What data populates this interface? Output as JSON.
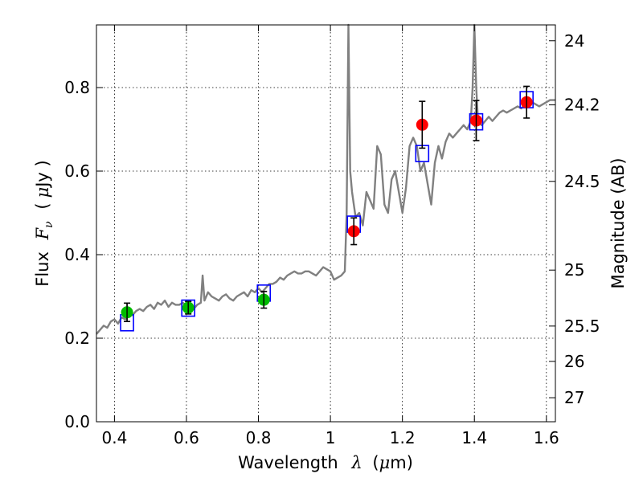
{
  "chart_data": {
    "type": "scatter",
    "xlabel": {
      "prefix": "Wavelength",
      "symbol": "λ",
      "unit_open": "(",
      "unit_mu": "μ",
      "unit_rest": "m)"
    },
    "ylabel": {
      "prefix": "Flux",
      "symbol": "F",
      "sub": "ν",
      "unit_open": "(",
      "unit_mu": "μ",
      "unit_rest": "Jy )"
    },
    "y2label": "Magnitude (AB)",
    "xlim": [
      0.35,
      1.625
    ],
    "ylim": [
      0.0,
      0.95
    ],
    "grid": true,
    "x_ticks": [
      {
        "v": 0.4,
        "label": "0.4"
      },
      {
        "v": 0.6,
        "label": "0.6"
      },
      {
        "v": 0.8,
        "label": "0.8"
      },
      {
        "v": 1.0,
        "label": "1"
      },
      {
        "v": 1.2,
        "label": "1.2"
      },
      {
        "v": 1.4,
        "label": "1.4"
      },
      {
        "v": 1.6,
        "label": "1.6"
      }
    ],
    "y_ticks": [
      {
        "v": 0.0,
        "label": "0.0"
      },
      {
        "v": 0.2,
        "label": "0.2"
      },
      {
        "v": 0.4,
        "label": "0.4"
      },
      {
        "v": 0.6,
        "label": "0.6"
      },
      {
        "v": 0.8,
        "label": "0.8"
      }
    ],
    "mag_ticks": [
      {
        "mag": 24,
        "label": "24"
      },
      {
        "mag": 24.2,
        "label": "24.2"
      },
      {
        "mag": 24.5,
        "label": "24.5"
      },
      {
        "mag": 25,
        "label": "25"
      },
      {
        "mag": 25.5,
        "label": "25.5"
      },
      {
        "mag": 26,
        "label": "26"
      },
      {
        "mag": 27,
        "label": "27"
      }
    ],
    "colors": {
      "spectrum": "#808080",
      "green": "#00bb00",
      "red": "#ff0000",
      "model_box": "#0000ff",
      "errorbar": "#000000",
      "grid": "#000000"
    },
    "series": [
      {
        "kind": "spectrum",
        "x": [
          0.35,
          0.36,
          0.37,
          0.38,
          0.39,
          0.4,
          0.41,
          0.42,
          0.43,
          0.44,
          0.45,
          0.46,
          0.47,
          0.48,
          0.49,
          0.5,
          0.51,
          0.52,
          0.53,
          0.54,
          0.55,
          0.56,
          0.57,
          0.58,
          0.59,
          0.6,
          0.61,
          0.62,
          0.63,
          0.64,
          0.645,
          0.65,
          0.655,
          0.66,
          0.67,
          0.68,
          0.69,
          0.7,
          0.71,
          0.72,
          0.73,
          0.74,
          0.75,
          0.76,
          0.77,
          0.78,
          0.79,
          0.8,
          0.81,
          0.82,
          0.83,
          0.84,
          0.85,
          0.86,
          0.87,
          0.88,
          0.89,
          0.9,
          0.91,
          0.92,
          0.93,
          0.94,
          0.95,
          0.96,
          0.97,
          0.98,
          0.99,
          1.0,
          1.01,
          1.02,
          1.03,
          1.04,
          1.045,
          1.05,
          1.055,
          1.06,
          1.07,
          1.08,
          1.09,
          1.1,
          1.11,
          1.12,
          1.13,
          1.14,
          1.15,
          1.16,
          1.17,
          1.18,
          1.19,
          1.2,
          1.21,
          1.22,
          1.23,
          1.24,
          1.25,
          1.26,
          1.27,
          1.28,
          1.29,
          1.3,
          1.31,
          1.32,
          1.33,
          1.34,
          1.35,
          1.36,
          1.37,
          1.38,
          1.39,
          1.395,
          1.4,
          1.405,
          1.41,
          1.42,
          1.43,
          1.44,
          1.45,
          1.46,
          1.47,
          1.48,
          1.49,
          1.5,
          1.51,
          1.52,
          1.53,
          1.54,
          1.55,
          1.56,
          1.57,
          1.58,
          1.59,
          1.6,
          1.61,
          1.625
        ],
        "y": [
          0.21,
          0.22,
          0.23,
          0.225,
          0.24,
          0.245,
          0.235,
          0.25,
          0.245,
          0.26,
          0.255,
          0.265,
          0.27,
          0.265,
          0.275,
          0.28,
          0.27,
          0.285,
          0.28,
          0.29,
          0.275,
          0.285,
          0.28,
          0.28,
          0.285,
          0.275,
          0.28,
          0.27,
          0.28,
          0.285,
          0.35,
          0.29,
          0.3,
          0.31,
          0.3,
          0.295,
          0.29,
          0.3,
          0.305,
          0.295,
          0.29,
          0.3,
          0.305,
          0.31,
          0.3,
          0.315,
          0.31,
          0.32,
          0.31,
          0.32,
          0.33,
          0.33,
          0.335,
          0.345,
          0.34,
          0.35,
          0.355,
          0.36,
          0.355,
          0.355,
          0.36,
          0.36,
          0.355,
          0.35,
          0.36,
          0.37,
          0.365,
          0.36,
          0.34,
          0.345,
          0.35,
          0.36,
          0.5,
          0.95,
          0.6,
          0.55,
          0.49,
          0.5,
          0.47,
          0.55,
          0.53,
          0.51,
          0.66,
          0.64,
          0.52,
          0.5,
          0.58,
          0.6,
          0.55,
          0.5,
          0.56,
          0.66,
          0.68,
          0.66,
          0.6,
          0.62,
          0.57,
          0.52,
          0.62,
          0.66,
          0.63,
          0.67,
          0.69,
          0.68,
          0.69,
          0.7,
          0.71,
          0.7,
          0.72,
          0.8,
          0.95,
          0.8,
          0.72,
          0.71,
          0.72,
          0.73,
          0.72,
          0.73,
          0.74,
          0.745,
          0.74,
          0.745,
          0.75,
          0.755,
          0.75,
          0.76,
          0.755,
          0.765,
          0.76,
          0.755,
          0.76,
          0.765,
          0.77,
          0.77
        ]
      },
      {
        "kind": "model-boxes",
        "x": [
          0.435,
          0.605,
          0.815,
          1.065,
          1.255,
          1.405,
          1.545
        ],
        "y": [
          0.237,
          0.272,
          0.308,
          0.473,
          0.642,
          0.718,
          0.771
        ]
      },
      {
        "kind": "points",
        "color": "green",
        "x": [
          0.435,
          0.605,
          0.815
        ],
        "y": [
          0.262,
          0.273,
          0.292
        ],
        "yerr": [
          0.022,
          0.015,
          0.02
        ]
      },
      {
        "kind": "points",
        "color": "red",
        "x": [
          1.065,
          1.255,
          1.405,
          1.545
        ],
        "y": [
          0.456,
          0.711,
          0.721,
          0.765
        ],
        "yerr": [
          0.032,
          0.056,
          0.048,
          0.038
        ]
      }
    ]
  }
}
